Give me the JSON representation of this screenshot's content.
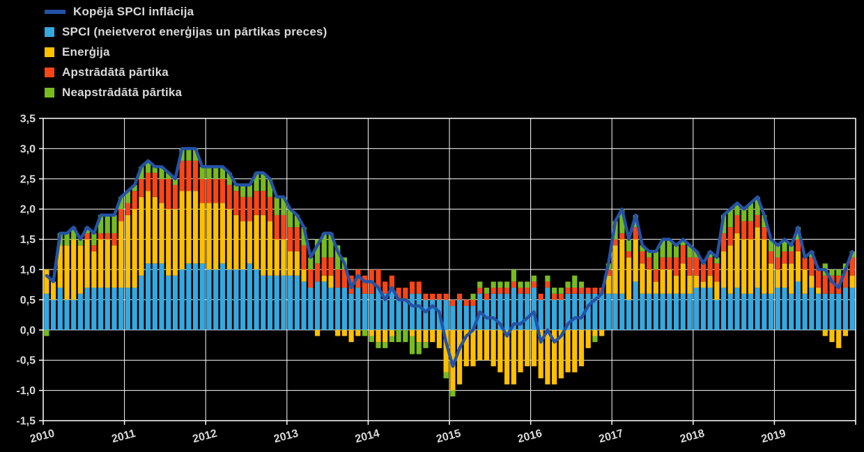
{
  "legend": {
    "items": [
      {
        "label": "Kopējā SPCI inflācija",
        "type": "line",
        "color": "#2453a6"
      },
      {
        "label": "SPCI (neietverot enerģijas un pārtikas preces)",
        "type": "box",
        "color": "#35a8e0"
      },
      {
        "label": "Enerģija",
        "type": "box",
        "color": "#ffc000"
      },
      {
        "label": "Apstrādātā pārtika",
        "type": "box",
        "color": "#fa4616"
      },
      {
        "label": "Neapstrādātā pārtika",
        "type": "box",
        "color": "#77bc1f"
      }
    ]
  },
  "chart_data": {
    "type": "bar",
    "stacked": true,
    "overlay": "line",
    "frequency": "monthly",
    "grid": true,
    "background": "#000000",
    "grid_color": "#ffffff",
    "text_color": "#d9d9d9",
    "ylim": [
      -1.5,
      3.5
    ],
    "ytick_step": 0.5,
    "ytick_labels": [
      "3,5",
      "3,0",
      "2,5",
      "2,0",
      "1,5",
      "1,0",
      "0,5",
      "0,0",
      "-0,5",
      "-1,0",
      "-1,5"
    ],
    "x_labels": [
      "2010",
      "2011",
      "2012",
      "2013",
      "2014",
      "2015",
      "2016",
      "2017",
      "2018",
      "2019"
    ],
    "series": [
      {
        "key": "core",
        "name": "SPCI (neietverot enerģijas un pārtikas preces)",
        "color": "#35a8e0",
        "values": [
          0.6,
          0.5,
          0.7,
          0.5,
          0.5,
          0.6,
          0.7,
          0.7,
          0.7,
          0.7,
          0.7,
          0.7,
          0.7,
          0.7,
          0.9,
          1.1,
          1.1,
          1.1,
          0.9,
          0.9,
          1.0,
          1.1,
          1.1,
          1.1,
          1.0,
          1.0,
          1.1,
          1.0,
          1.0,
          1.0,
          1.1,
          1.0,
          0.9,
          0.9,
          0.9,
          0.9,
          0.9,
          0.9,
          0.8,
          0.7,
          0.8,
          0.8,
          0.7,
          0.7,
          0.7,
          0.6,
          0.7,
          0.6,
          0.6,
          0.7,
          0.6,
          0.7,
          0.5,
          0.5,
          0.6,
          0.6,
          0.5,
          0.5,
          0.5,
          0.5,
          0.4,
          0.5,
          0.4,
          0.4,
          0.6,
          0.5,
          0.6,
          0.6,
          0.6,
          0.7,
          0.6,
          0.6,
          0.7,
          0.5,
          0.7,
          0.5,
          0.5,
          0.6,
          0.6,
          0.6,
          0.6,
          0.6,
          0.6,
          0.6,
          0.6,
          0.6,
          0.5,
          0.8,
          0.6,
          0.6,
          0.6,
          0.6,
          0.6,
          0.6,
          0.6,
          0.6,
          0.7,
          0.7,
          0.7,
          0.5,
          0.7,
          0.6,
          0.7,
          0.6,
          0.6,
          0.7,
          0.6,
          0.6,
          0.7,
          0.7,
          0.6,
          0.8,
          0.6,
          0.7,
          0.6,
          0.6,
          0.6,
          0.6,
          0.7,
          0.7
        ]
      },
      {
        "key": "energy",
        "name": "Enerģija",
        "color": "#ffc000",
        "values": [
          0.4,
          0.3,
          0.7,
          0.9,
          1.0,
          0.8,
          0.8,
          0.6,
          0.8,
          0.8,
          0.7,
          1.1,
          1.2,
          1.3,
          1.3,
          1.2,
          1.1,
          1.0,
          1.1,
          1.1,
          1.3,
          1.2,
          1.2,
          1.0,
          1.1,
          1.1,
          1.0,
          1.0,
          0.9,
          0.8,
          0.7,
          0.9,
          1.0,
          0.9,
          0.6,
          0.6,
          0.4,
          0.4,
          0.2,
          0.0,
          -0.1,
          0.1,
          0.2,
          -0.1,
          -0.1,
          -0.2,
          -0.1,
          0.0,
          -0.1,
          -0.2,
          -0.2,
          -0.1,
          0.0,
          0.0,
          -0.1,
          -0.2,
          -0.2,
          -0.2,
          -0.3,
          -0.7,
          -1.0,
          -0.9,
          -0.6,
          -0.6,
          -0.5,
          -0.5,
          -0.6,
          -0.7,
          -0.9,
          -0.9,
          -0.7,
          -0.6,
          -0.6,
          -0.8,
          -0.9,
          -0.9,
          -0.8,
          -0.7,
          -0.7,
          -0.6,
          -0.3,
          -0.1,
          -0.1,
          0.3,
          0.8,
          0.9,
          0.7,
          0.7,
          0.5,
          0.4,
          0.2,
          0.4,
          0.4,
          0.3,
          0.5,
          0.3,
          0.2,
          0.1,
          0.2,
          0.3,
          0.6,
          0.8,
          0.9,
          0.9,
          0.9,
          1.0,
          0.9,
          0.5,
          0.3,
          0.4,
          0.5,
          0.5,
          0.4,
          0.2,
          0.1,
          -0.1,
          -0.2,
          -0.3,
          -0.1,
          0.2
        ]
      },
      {
        "key": "processed-food",
        "name": "Apstrādātā pārtika",
        "color": "#fa4616",
        "values": [
          0.0,
          0.0,
          0.0,
          0.0,
          0.0,
          0.0,
          0.1,
          0.1,
          0.1,
          0.1,
          0.2,
          0.2,
          0.2,
          0.3,
          0.3,
          0.3,
          0.4,
          0.4,
          0.5,
          0.4,
          0.5,
          0.5,
          0.5,
          0.4,
          0.4,
          0.4,
          0.4,
          0.4,
          0.4,
          0.4,
          0.4,
          0.4,
          0.4,
          0.4,
          0.4,
          0.4,
          0.4,
          0.4,
          0.4,
          0.3,
          0.3,
          0.3,
          0.3,
          0.3,
          0.3,
          0.3,
          0.3,
          0.3,
          0.4,
          0.3,
          0.2,
          0.2,
          0.2,
          0.2,
          0.2,
          0.2,
          0.1,
          0.1,
          0.1,
          0.1,
          0.1,
          0.1,
          0.1,
          0.1,
          0.1,
          0.1,
          0.1,
          0.1,
          0.1,
          0.1,
          0.1,
          0.1,
          0.1,
          0.1,
          0.1,
          0.1,
          0.1,
          0.1,
          0.1,
          0.1,
          0.1,
          0.1,
          0.1,
          0.1,
          0.1,
          0.1,
          0.1,
          0.2,
          0.2,
          0.2,
          0.2,
          0.2,
          0.2,
          0.3,
          0.3,
          0.3,
          0.3,
          0.3,
          0.3,
          0.3,
          0.3,
          0.3,
          0.3,
          0.3,
          0.3,
          0.2,
          0.2,
          0.2,
          0.2,
          0.2,
          0.2,
          0.2,
          0.2,
          0.3,
          0.3,
          0.3,
          0.3,
          0.3,
          0.3,
          0.3
        ]
      },
      {
        "key": "unprocessed-food",
        "name": "Neapstrādātā pārtika",
        "color": "#77bc1f",
        "values": [
          -0.1,
          0.0,
          0.2,
          0.2,
          0.2,
          0.1,
          0.1,
          0.2,
          0.3,
          0.3,
          0.3,
          0.2,
          0.2,
          0.1,
          0.2,
          0.2,
          0.1,
          0.2,
          0.1,
          0.1,
          0.2,
          0.2,
          0.2,
          0.2,
          0.2,
          0.2,
          0.2,
          0.2,
          0.1,
          0.2,
          0.2,
          0.3,
          0.3,
          0.3,
          0.3,
          0.3,
          0.3,
          0.2,
          0.3,
          0.2,
          0.4,
          0.4,
          0.4,
          0.4,
          0.2,
          0.0,
          0.0,
          -0.1,
          -0.1,
          -0.1,
          -0.1,
          -0.1,
          -0.2,
          -0.2,
          -0.3,
          -0.2,
          -0.1,
          0.0,
          0.0,
          -0.1,
          -0.1,
          0.0,
          0.0,
          0.1,
          0.1,
          0.1,
          0.1,
          0.1,
          0.1,
          0.2,
          0.1,
          0.1,
          0.1,
          0.0,
          0.1,
          0.1,
          0.1,
          0.1,
          0.2,
          0.1,
          0.0,
          -0.1,
          0.0,
          0.1,
          0.3,
          0.4,
          0.2,
          0.2,
          0.1,
          0.1,
          0.3,
          0.3,
          0.3,
          0.2,
          0.1,
          0.2,
          0.1,
          0.0,
          0.1,
          0.1,
          0.3,
          0.3,
          0.2,
          0.2,
          0.3,
          0.3,
          0.2,
          0.2,
          0.2,
          0.2,
          0.1,
          0.2,
          0.0,
          0.1,
          0.0,
          0.2,
          0.1,
          0.1,
          0.1,
          0.1
        ]
      }
    ],
    "line": {
      "name": "Kopējā SPCI inflācija",
      "color": "#2453a6",
      "values": [
        0.9,
        0.8,
        1.6,
        1.6,
        1.7,
        1.5,
        1.7,
        1.6,
        1.9,
        1.9,
        1.9,
        2.2,
        2.3,
        2.4,
        2.7,
        2.8,
        2.7,
        2.7,
        2.6,
        2.5,
        3.0,
        3.0,
        3.0,
        2.7,
        2.7,
        2.7,
        2.7,
        2.6,
        2.4,
        2.4,
        2.4,
        2.6,
        2.6,
        2.5,
        2.2,
        2.2,
        2.0,
        1.9,
        1.7,
        1.2,
        1.4,
        1.6,
        1.6,
        1.3,
        1.1,
        0.7,
        0.9,
        0.8,
        0.8,
        0.7,
        0.5,
        0.7,
        0.5,
        0.5,
        0.4,
        0.4,
        0.3,
        0.4,
        0.3,
        -0.2,
        -0.6,
        -0.3,
        -0.1,
        0.0,
        0.3,
        0.2,
        0.2,
        0.1,
        -0.1,
        0.1,
        0.1,
        0.2,
        0.3,
        -0.2,
        0.0,
        -0.2,
        -0.1,
        0.1,
        0.2,
        0.2,
        0.4,
        0.5,
        0.6,
        1.1,
        1.8,
        2.0,
        1.5,
        1.9,
        1.4,
        1.3,
        1.3,
        1.5,
        1.5,
        1.4,
        1.5,
        1.4,
        1.3,
        1.1,
        1.3,
        1.2,
        1.9,
        2.0,
        2.1,
        2.0,
        2.1,
        2.2,
        1.9,
        1.5,
        1.4,
        1.5,
        1.4,
        1.7,
        1.2,
        1.3,
        1.0,
        1.0,
        0.8,
        0.7,
        1.0,
        1.3
      ]
    }
  }
}
